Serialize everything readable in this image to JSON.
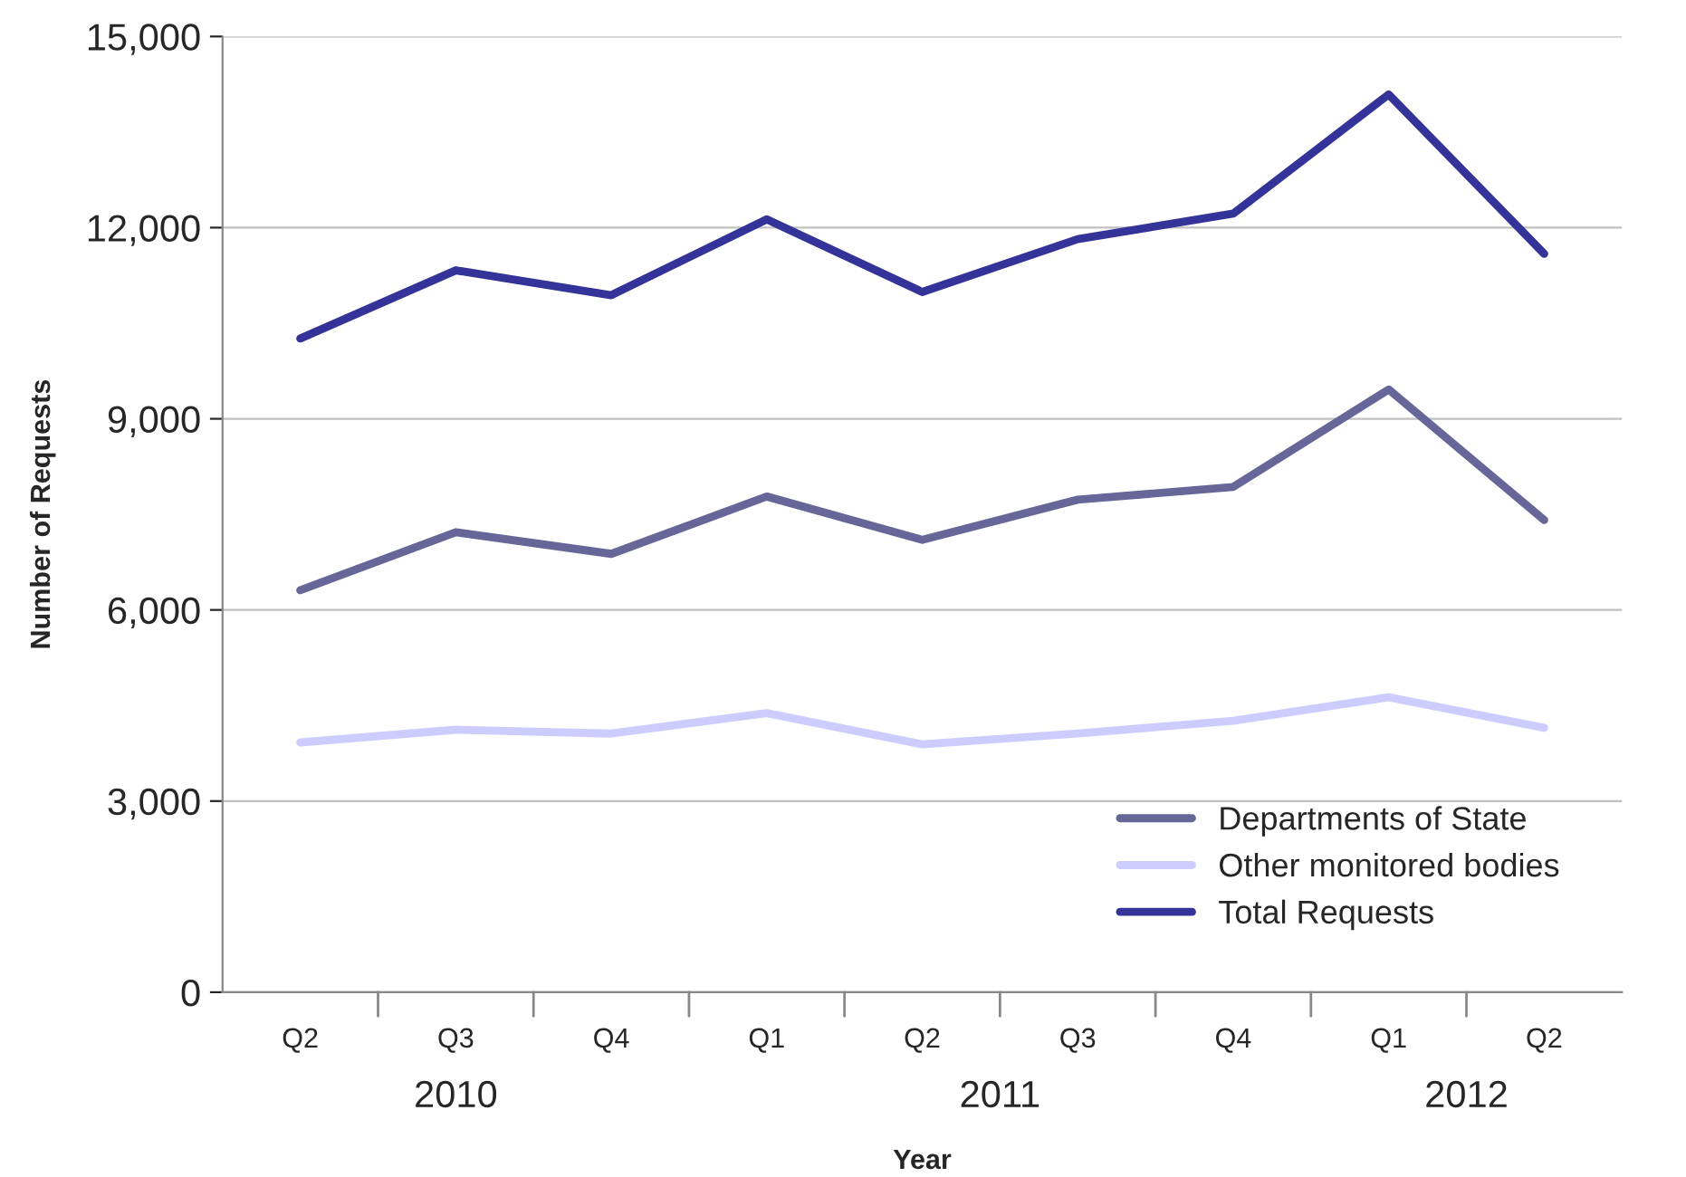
{
  "chart_data": {
    "type": "line",
    "xlabel": "Year",
    "ylabel": "Number of Requests",
    "categories": [
      "Q2",
      "Q3",
      "Q4",
      "Q1",
      "Q2",
      "Q3",
      "Q4",
      "Q1",
      "Q2"
    ],
    "series": [
      {
        "name": "Departments of State",
        "color": "#666699",
        "values": [
          6310,
          7220,
          6880,
          7780,
          7100,
          7730,
          7930,
          9460,
          7410
        ]
      },
      {
        "name": "Other monitored bodies",
        "color": "#ccccff",
        "values": [
          3920,
          4120,
          4060,
          4380,
          3890,
          4060,
          4260,
          4630,
          4150
        ]
      },
      {
        "name": "Total Requests",
        "color": "#333399",
        "values": [
          10260,
          11330,
          10940,
          12130,
          10990,
          11820,
          12220,
          14090,
          11590
        ]
      }
    ],
    "annotations": [
      "2010",
      "2011",
      "2012"
    ],
    "ylim": [
      0,
      15000
    ],
    "yticks": [
      {
        "value": 0,
        "label": "0"
      },
      {
        "value": 3000,
        "label": "3,000"
      },
      {
        "value": 6000,
        "label": "6,000"
      },
      {
        "value": 9000,
        "label": "9,000"
      },
      {
        "value": 12000,
        "label": "12,000"
      },
      {
        "value": 15000,
        "label": "15,000"
      }
    ],
    "grid": "y",
    "legend": "bottom right",
    "marker": "none",
    "line_style": "solid"
  }
}
